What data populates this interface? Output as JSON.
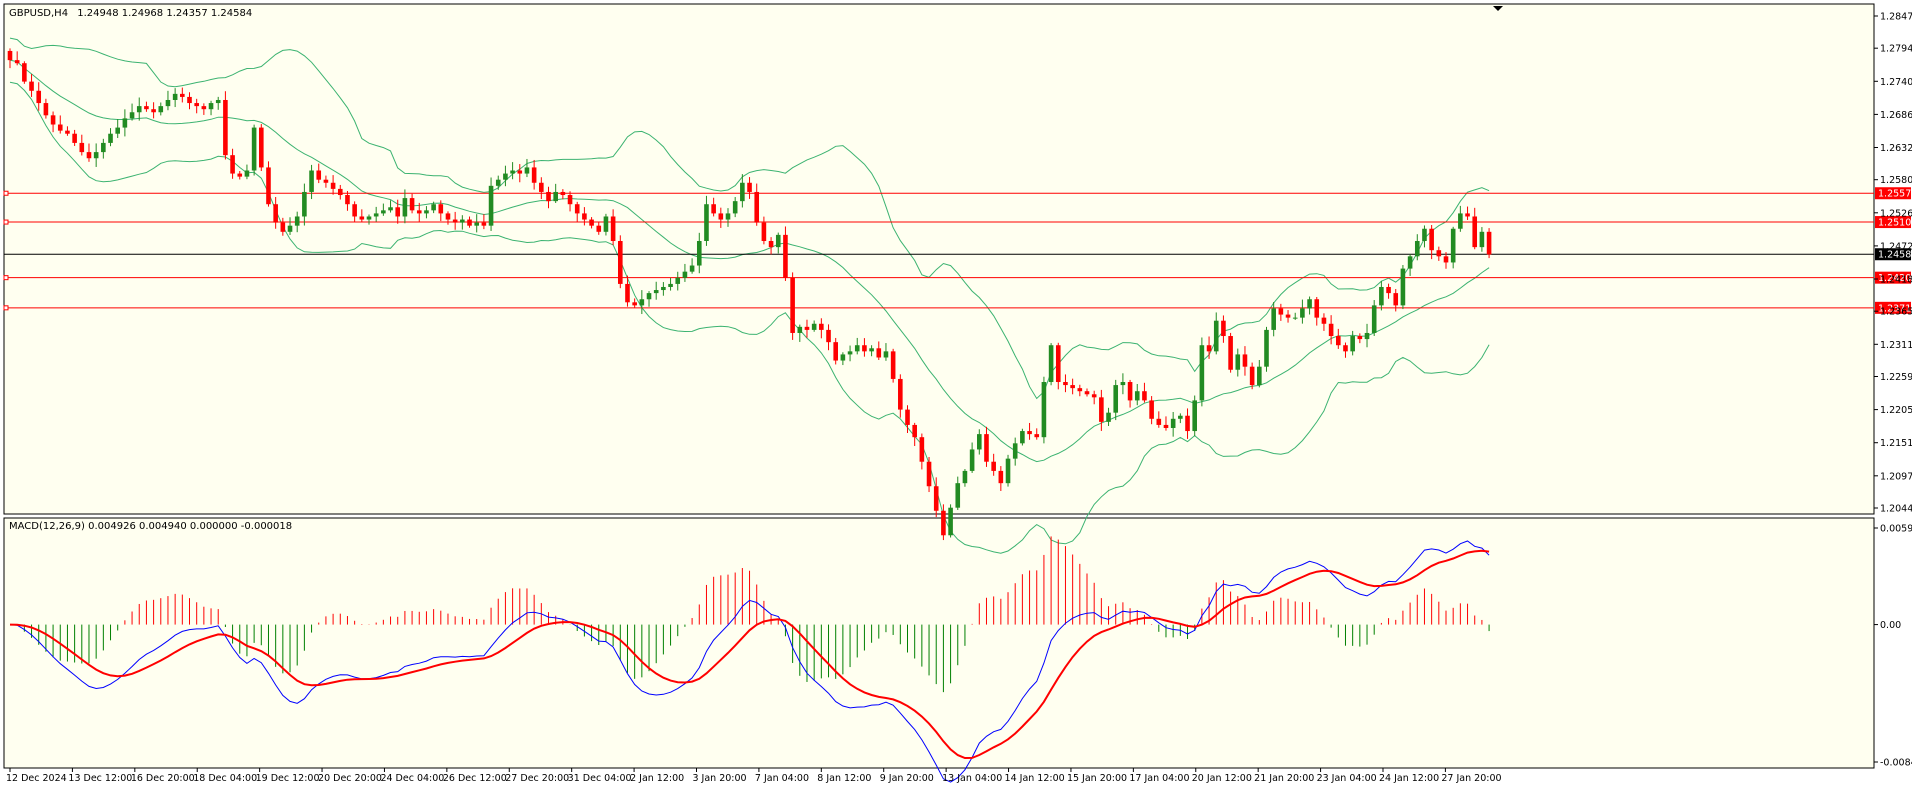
{
  "chart_data": {
    "type": "candlestick",
    "main_panel": {
      "header": {
        "symbol_timeframe": "GBPUSD,H4",
        "ohlc": "1.24948 1.24968 1.24357 1.24584"
      },
      "current_price": 1.24584,
      "current_price_label": "1.24584",
      "price_axis_ticks": [
        "1.28470",
        "1.27945",
        "1.27405",
        "1.26865",
        "1.26325",
        "1.25800",
        "1.25260",
        "1.24720",
        "1.24180",
        "1.23655",
        "1.23115",
        "1.22590",
        "1.22050",
        "1.21510",
        "1.20970",
        "1.20445"
      ],
      "ylim": [
        1.20445,
        1.2847
      ],
      "horizontal_levels": [
        {
          "value": 1.25579,
          "label": "1.25579",
          "color": "#ff0000"
        },
        {
          "value": 1.25109,
          "label": "1.25109",
          "color": "#ff0000"
        },
        {
          "value": 1.24202,
          "label": "1.24202",
          "color": "#ff0000"
        },
        {
          "value": 1.2371,
          "label": "1.23710",
          "color": "#ff0000"
        }
      ],
      "close_series": [
        1.2775,
        1.277,
        1.274,
        1.2725,
        1.2705,
        1.2685,
        1.267,
        1.266,
        1.2655,
        1.264,
        1.2625,
        1.2615,
        1.2625,
        1.264,
        1.2655,
        1.2665,
        1.268,
        1.269,
        1.27,
        1.2695,
        1.269,
        1.27,
        1.271,
        1.272,
        1.2715,
        1.2705,
        1.27,
        1.2695,
        1.2705,
        1.271,
        1.262,
        1.259,
        1.2585,
        1.2595,
        1.2665,
        1.26,
        1.254,
        1.251,
        1.2495,
        1.2505,
        1.252,
        1.256,
        1.2595,
        1.258,
        1.2575,
        1.2565,
        1.2555,
        1.254,
        1.252,
        1.2515,
        1.252,
        1.2525,
        1.253,
        1.2535,
        1.252,
        1.255,
        1.253,
        1.2525,
        1.253,
        1.254,
        1.2525,
        1.2515,
        1.251,
        1.2515,
        1.2505,
        1.251,
        1.2505,
        1.257,
        1.258,
        1.259,
        1.2595,
        1.259,
        1.26,
        1.2575,
        1.256,
        1.2545,
        1.256,
        1.2555,
        1.254,
        1.2525,
        1.2515,
        1.2505,
        1.2495,
        1.252,
        1.248,
        1.241,
        1.238,
        1.2375,
        1.2385,
        1.2395,
        1.24,
        1.2405,
        1.241,
        1.242,
        1.243,
        1.244,
        1.248,
        1.254,
        1.2525,
        1.2515,
        1.2525,
        1.2545,
        1.2575,
        1.256,
        1.251,
        1.248,
        1.247,
        1.249,
        1.242,
        1.233,
        1.234,
        1.2335,
        1.2345,
        1.2335,
        1.2315,
        1.2285,
        1.2295,
        1.23,
        1.231,
        1.23,
        1.2305,
        1.229,
        1.23,
        1.2255,
        1.2205,
        1.218,
        1.216,
        1.212,
        1.208,
        1.204,
        1.2,
        1.2045,
        1.2085,
        1.2105,
        1.214,
        1.2165,
        1.212,
        1.2105,
        1.2085,
        1.2125,
        1.215,
        1.217,
        1.2165,
        1.216,
        1.225,
        1.231,
        1.225,
        1.2245,
        1.224,
        1.2235,
        1.223,
        1.2225,
        1.2185,
        1.22,
        1.2245,
        1.225,
        1.222,
        1.2235,
        1.222,
        1.219,
        1.218,
        1.2175,
        1.219,
        1.2195,
        1.217,
        1.222,
        1.231,
        1.23,
        1.235,
        1.2325,
        1.227,
        1.2295,
        1.2275,
        1.2245,
        1.2275,
        1.2335,
        1.237,
        1.236,
        1.2355,
        1.2355,
        1.237,
        1.2385,
        1.2355,
        1.2345,
        1.2325,
        1.231,
        1.23,
        1.2325,
        1.232,
        1.233,
        1.2375,
        1.2405,
        1.2395,
        1.2375,
        1.2435,
        1.2455,
        1.248,
        1.25,
        1.2465,
        1.2455,
        1.2445,
        1.25,
        1.2525,
        1.252,
        1.247,
        1.2495,
        1.2458
      ],
      "indicator": "Bollinger Bands",
      "indicator_color": "#3cb371"
    },
    "macd_panel": {
      "label": "MACD(12,26,9) 0.004926 0.004940 0.000000 -0.000018",
      "axis_ticks": [
        "0.005946",
        "0.00",
        "-0.00846"
      ],
      "ylim": [
        -0.00846,
        0.005946
      ],
      "macd_color": "#0000ff",
      "signal_color": "#ff0000",
      "histogram_up_color": "#ff0000",
      "histogram_down_color": "#008000"
    },
    "x_tick_labels": [
      "12 Dec 2024",
      "13 Dec 12:00",
      "16 Dec 20:00",
      "18 Dec 04:00",
      "19 Dec 12:00",
      "20 Dec 20:00",
      "24 Dec 04:00",
      "26 Dec 12:00",
      "27 Dec 20:00",
      "31 Dec 04:00",
      "2 Jan 12:00",
      "3 Jan 20:00",
      "7 Jan 04:00",
      "8 Jan 12:00",
      "9 Jan 20:00",
      "13 Jan 04:00",
      "14 Jan 12:00",
      "15 Jan 20:00",
      "17 Jan 04:00",
      "20 Jan 12:00",
      "21 Jan 20:00",
      "23 Jan 04:00",
      "24 Jan 12:00",
      "27 Jan 20:00"
    ],
    "colors": {
      "background": "#fffff0",
      "bull": "#228b22",
      "bear": "#ff0000",
      "frame": "#000000"
    }
  }
}
